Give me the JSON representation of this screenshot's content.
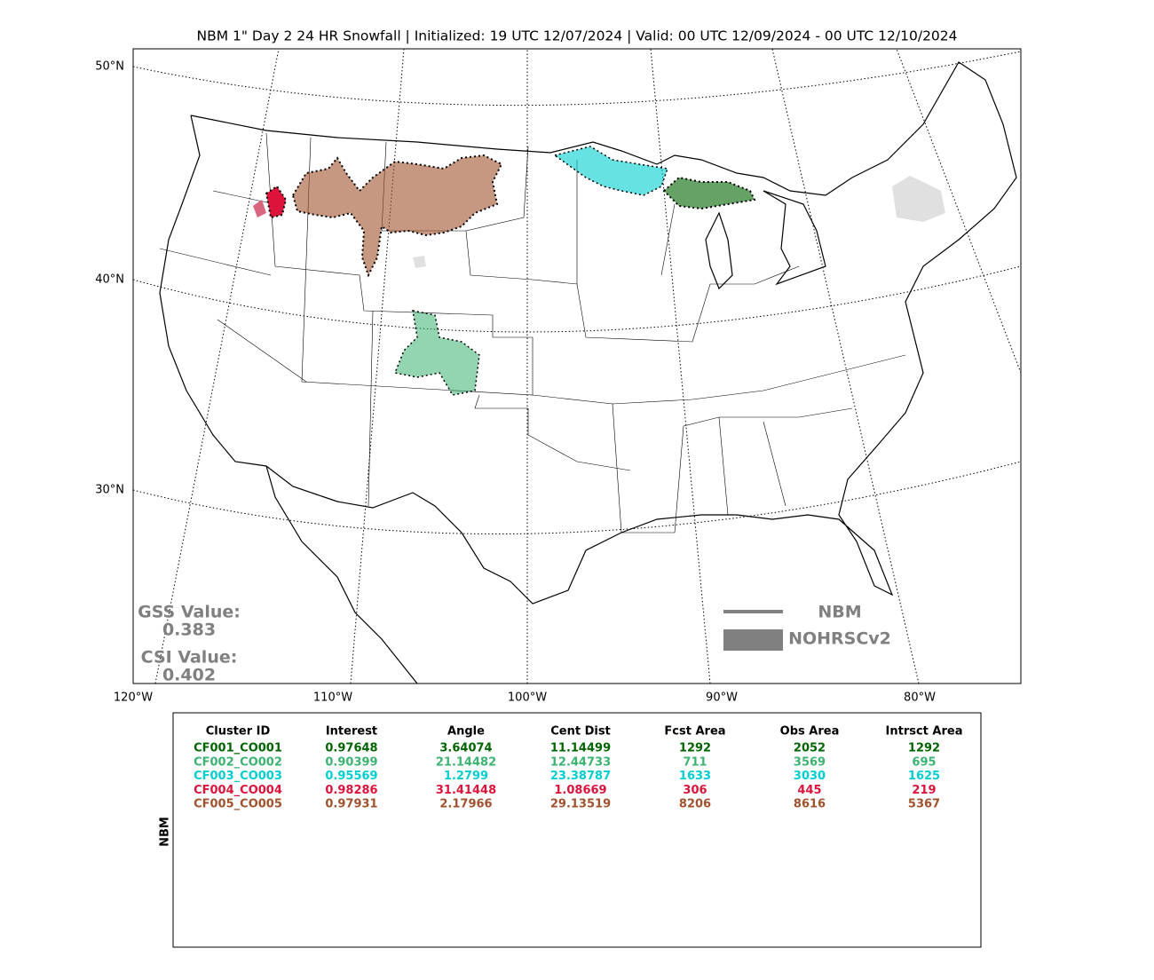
{
  "title": "NBM 1\" Day 2 24 HR Snowfall | Initialized: 19 UTC 12/07/2024 | Valid: 00 UTC 12/09/2024 - 00 UTC 12/10/2024",
  "map": {
    "lat_labels": [
      "50°N",
      "40°N",
      "30°N"
    ],
    "lon_labels": [
      "120°W",
      "110°W",
      "100°W",
      "90°W",
      "80°W"
    ],
    "gss_label": "GSS Value:",
    "gss_value": "0.383",
    "csi_label": "CSI Value:",
    "csi_value": "0.402",
    "legend": [
      "NBM",
      "NOHRSCv2"
    ]
  },
  "table": {
    "side_label": "NBM",
    "header": [
      "Cluster ID",
      "Interest",
      "Angle",
      "Cent Dist",
      "Fcst Area",
      "Obs Area",
      "Intrsct Area"
    ],
    "rows": [
      {
        "color": "#006400",
        "cells": [
          "CF001_CO001",
          "0.97648",
          "3.64074",
          "11.14499",
          "1292",
          "2052",
          "1292"
        ]
      },
      {
        "color": "#3cb371",
        "cells": [
          "CF002_CO002",
          "0.90399",
          "21.14482",
          "12.44733",
          "711",
          "3569",
          "695"
        ]
      },
      {
        "color": "#00ced1",
        "cells": [
          "CF003_CO003",
          "0.95569",
          "1.2799",
          "23.38787",
          "1633",
          "3030",
          "1625"
        ]
      },
      {
        "color": "#dc143c",
        "cells": [
          "CF004_CO004",
          "0.98286",
          "31.41448",
          "1.08669",
          "306",
          "445",
          "219"
        ]
      },
      {
        "color": "#a0522d",
        "cells": [
          "CF005_CO005",
          "0.97931",
          "2.17966",
          "29.13519",
          "8206",
          "8616",
          "5367"
        ]
      }
    ]
  }
}
